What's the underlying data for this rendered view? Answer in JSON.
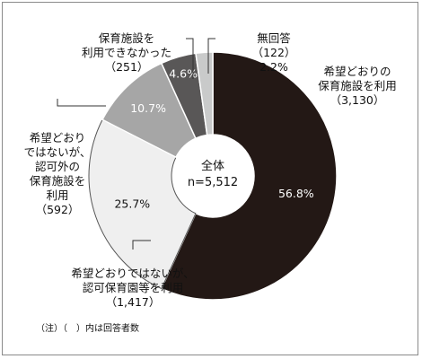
{
  "chart_data": {
    "type": "pie",
    "center": {
      "title": "全体",
      "total": "n=5,512"
    },
    "colors": {
      "outline": "#ffffff",
      "leader": "#333333"
    },
    "slices": [
      {
        "key": "kibou",
        "percent": 56.8,
        "percent_label": "56.8%",
        "count": 3130,
        "label_lines": [
          "希望どおりの",
          "保育施設を利用",
          "（3,130）"
        ],
        "color": "#231815",
        "pct_color": "#ffffff"
      },
      {
        "key": "ninka",
        "percent": 25.7,
        "percent_label": "25.7%",
        "count": 1417,
        "label_lines": [
          "希望どおりではないが、",
          "認可保育園等を利用",
          "（1,417）"
        ],
        "color": "#efefef",
        "pct_color": "#111111"
      },
      {
        "key": "ninkagai",
        "percent": 10.7,
        "percent_label": "10.7%",
        "count": 592,
        "label_lines": [
          "希望どおり",
          "ではないが、",
          "認可外の",
          "保育施設を",
          "利用",
          "（592）"
        ],
        "color": "#a6a6a6",
        "pct_color": "#ffffff"
      },
      {
        "key": "nashi",
        "percent": 4.6,
        "percent_label": "4.6%",
        "count": 251,
        "label_lines": [
          "保育施設を",
          "利用できなかった",
          "（251）"
        ],
        "color": "#595757",
        "pct_color": "#ffffff"
      },
      {
        "key": "mukaitou",
        "percent": 2.2,
        "percent_label": "",
        "count": 122,
        "label_lines": [
          "無回答",
          "（122）",
          "2.2%"
        ],
        "color": "#c9caca",
        "pct_color": "#111111"
      }
    ],
    "note": "（注）（　）内は回答者数"
  }
}
